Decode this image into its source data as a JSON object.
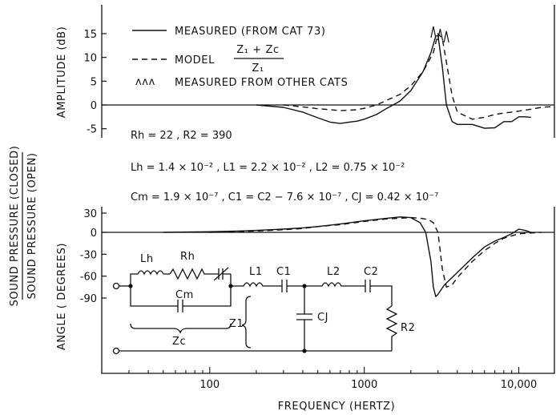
{
  "figure": {
    "y_label_outer_top": "SOUND PRESSURE (CLOSED)",
    "y_label_outer_bottom": "SOUND PRESSURE (OPEN)",
    "x_label": "FREQUENCY (HERTZ)",
    "x_ticks": [
      "100",
      "1000",
      "10,000"
    ]
  },
  "legend": {
    "measured": "MEASURED (FROM CAT 73)",
    "model_word": "MODEL",
    "model_num": "Z₁ + Zc",
    "model_den": "Z₁",
    "others_marker": "ʌʌʌ",
    "others": "MEASURED FROM OTHER CATS"
  },
  "params": {
    "line1": "Rh = 22 ,  R2 = 390",
    "line2": "Lh = 1.4 × 10⁻² , L1 = 2.2 × 10⁻² , L2 = 0.75 × 10⁻²",
    "line3": "Cm = 1.9 × 10⁻⁷ , C1 = C2 − 7.6 × 10⁻⁷ , CJ = 0.42 × 10⁻⁷"
  },
  "circuit": {
    "Lh": "Lh",
    "Rh": "Rh",
    "Cm": "Cm",
    "L1": "L1",
    "C1": "C1",
    "L2": "L2",
    "C2": "C2",
    "CJ": "CJ",
    "R2": "R2",
    "Z1": "Z1",
    "Zc": "Zc"
  },
  "chart_data": [
    {
      "type": "line",
      "title": "",
      "xlabel": "FREQUENCY (HERTZ)",
      "ylabel": "AMPLITUDE (dB)",
      "xscale": "log",
      "xlim": [
        20,
        17000
      ],
      "ylim": [
        -5,
        18
      ],
      "yticks": [
        -5,
        0,
        5,
        10,
        15
      ],
      "series": [
        {
          "name": "MEASURED (FROM CAT 73)",
          "style": "solid",
          "x": [
            200,
            300,
            400,
            500,
            600,
            700,
            800,
            900,
            1000,
            1200,
            1400,
            1700,
            2000,
            2400,
            2700,
            2900,
            3000,
            3200,
            3400,
            3700,
            4000,
            5000,
            6000,
            7000,
            8000,
            9000,
            10000,
            11000,
            12000
          ],
          "y": [
            0,
            -0.5,
            -1.5,
            -2.7,
            -3.6,
            -3.9,
            -3.6,
            -3.4,
            -3.0,
            -2.0,
            -0.7,
            0.8,
            3.0,
            7.0,
            11.0,
            14.5,
            14.6,
            8.0,
            0.0,
            -3.5,
            -4.1,
            -4.1,
            -4.9,
            -4.8,
            -3.5,
            -3.5,
            -2.5,
            -2.5,
            -2.6
          ]
        },
        {
          "name": "MODEL",
          "style": "dashed",
          "x": [
            300,
            400,
            500,
            600,
            700,
            800,
            900,
            1000,
            1200,
            1400,
            1700,
            2000,
            2400,
            2800,
            3000,
            3200,
            3400,
            3700,
            4000,
            5000,
            6000,
            7000,
            8000,
            9000,
            10000,
            12000,
            14000,
            17000
          ],
          "y": [
            0,
            -0.4,
            -0.8,
            -1.0,
            -1.2,
            -1.1,
            -1.0,
            -0.7,
            0.0,
            1.0,
            2.2,
            4.0,
            7.0,
            11.0,
            15.0,
            14.0,
            9.0,
            2.0,
            -1.5,
            -3.0,
            -2.6,
            -2.0,
            -1.7,
            -1.5,
            -1.3,
            -0.9,
            -0.5,
            -0.3
          ]
        },
        {
          "name": "MEASURED FROM OTHER CATS",
          "style": "peaks",
          "x": [
            2800,
            3100,
            3400
          ],
          "y": [
            16.5,
            16.0,
            15.5
          ]
        }
      ]
    },
    {
      "type": "line",
      "title": "",
      "xlabel": "FREQUENCY (HERTZ)",
      "ylabel": "ANGLE ( DEGREES)",
      "xscale": "log",
      "xlim": [
        20,
        17000
      ],
      "ylim": [
        -90,
        30
      ],
      "yticks": [
        -90,
        -60,
        -30,
        0,
        30
      ],
      "series": [
        {
          "name": "MEASURED (FROM CAT 73)",
          "style": "solid",
          "x": [
            50,
            100,
            150,
            200,
            300,
            400,
            500,
            700,
            1000,
            1400,
            1700,
            2000,
            2300,
            2500,
            2700,
            2800,
            2900,
            3000,
            3300,
            4000,
            5000,
            6000,
            7000,
            8000,
            9000,
            10000,
            11000,
            12000
          ],
          "y": [
            0,
            1,
            2,
            3,
            5,
            7,
            9,
            13,
            18,
            22,
            24,
            23,
            15,
            0,
            -40,
            -75,
            -88,
            -85,
            -72,
            -55,
            -35,
            -20,
            -12,
            -7,
            -2,
            5,
            3,
            0
          ]
        },
        {
          "name": "MODEL",
          "style": "dashed",
          "x": [
            100,
            200,
            300,
            400,
            500,
            700,
            1000,
            1400,
            1700,
            2000,
            2300,
            2600,
            2800,
            3000,
            3200,
            3400,
            3700,
            4000,
            5000,
            6000,
            7000,
            8000,
            10000,
            14000
          ],
          "y": [
            0,
            2,
            4,
            6,
            9,
            12,
            17,
            21,
            22,
            23,
            22,
            20,
            15,
            0,
            -50,
            -75,
            -72,
            -62,
            -40,
            -25,
            -15,
            -8,
            -2,
            0
          ]
        }
      ]
    }
  ]
}
